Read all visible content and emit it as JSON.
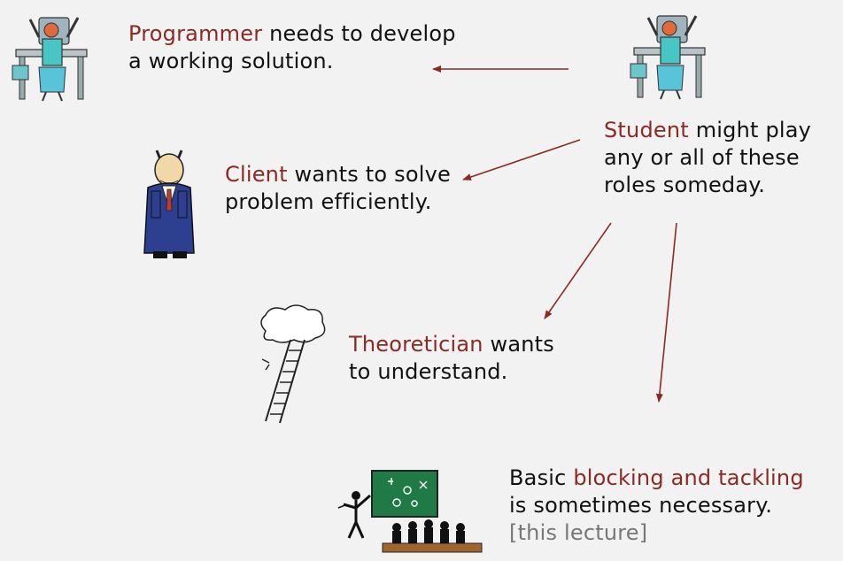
{
  "programmer": {
    "role": "Programmer",
    "rest_line1": " needs to develop",
    "line2": "a working solution."
  },
  "client": {
    "role": "Client",
    "rest_line1": " wants to solve",
    "line2": "problem efficiently."
  },
  "theoretician": {
    "role": "Theoretician",
    "rest_line1": " wants",
    "line2": "to understand."
  },
  "student": {
    "role": "Student",
    "rest_line1": " might play",
    "line2": "any or all of these",
    "line3": "roles someday."
  },
  "basics": {
    "prefix": "Basic ",
    "highlight": "blocking and tackling",
    "line2": "is sometimes necessary.",
    "note": "[this lecture]"
  },
  "colors": {
    "highlight": "#8b2a24",
    "arrow": "#8b2a24",
    "note": "#777777"
  },
  "icons": {
    "programmer": "programmer-at-desk-icon",
    "student": "student-at-desk-icon",
    "client": "businessman-client-icon",
    "theoretician": "ladder-to-cloud-icon",
    "lecture": "chalkboard-lecture-icon"
  }
}
